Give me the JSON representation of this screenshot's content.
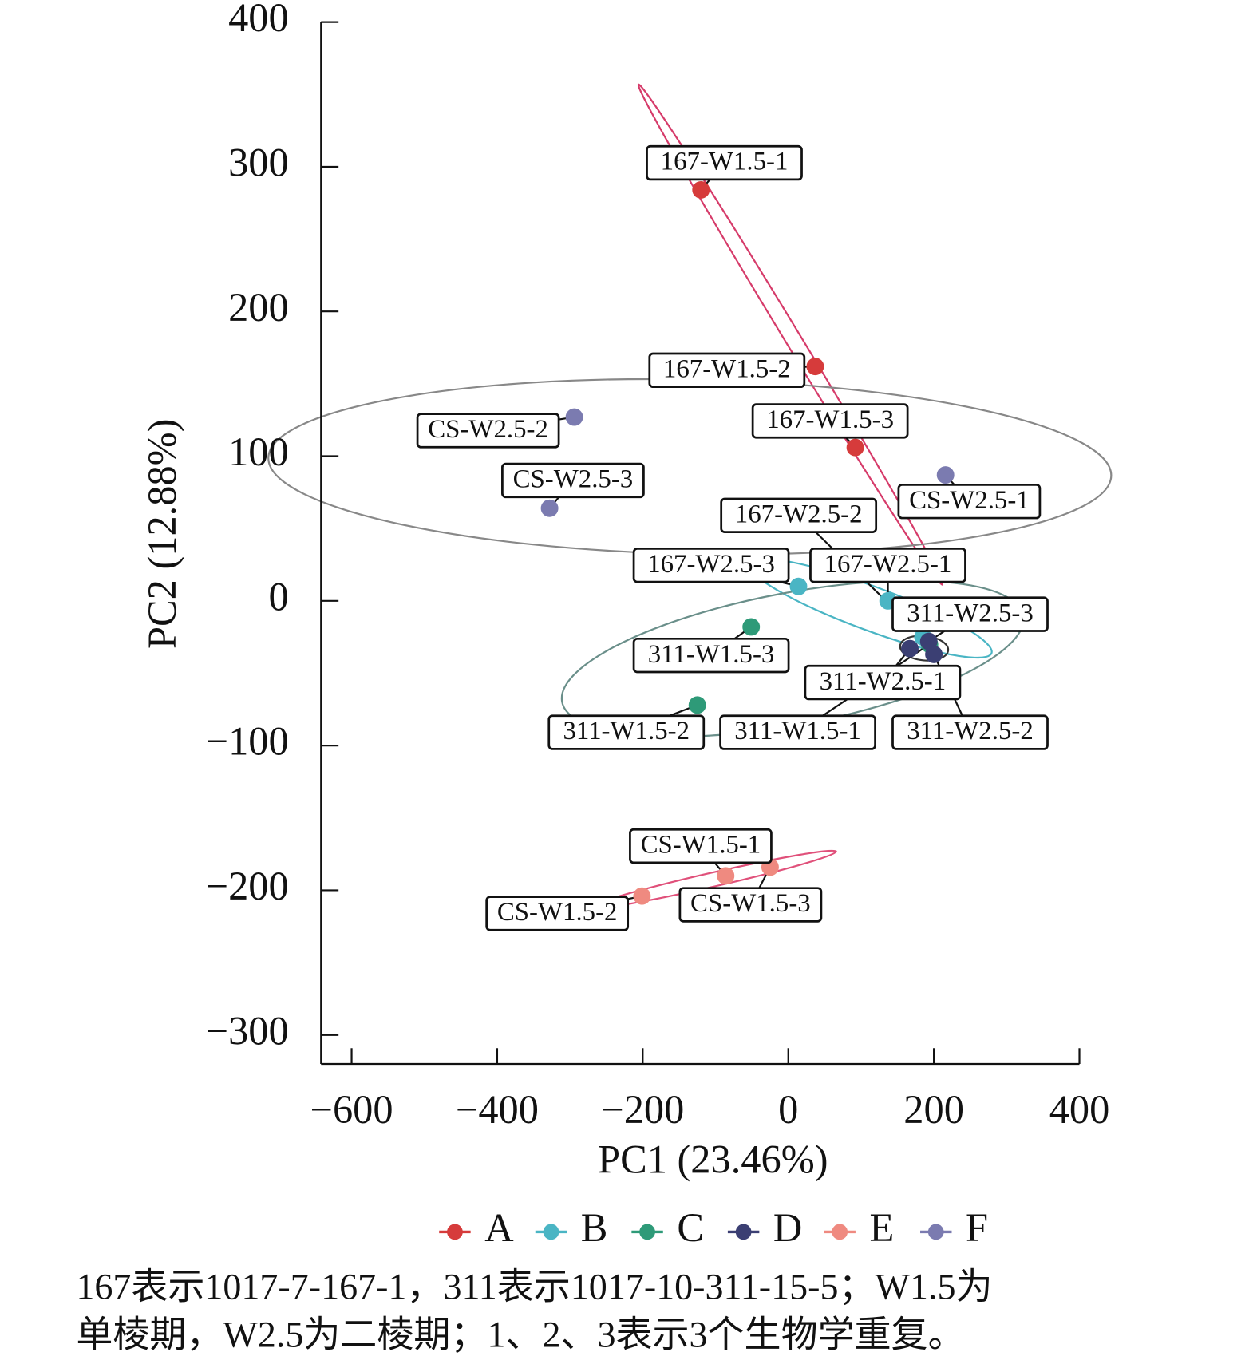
{
  "chart_data": {
    "type": "scatter",
    "x_label": "PC1 (23.46%)",
    "y_label": "PC2 (12.88%)",
    "xlim": [
      -642,
      400
    ],
    "ylim": [
      -320,
      400
    ],
    "xticks": [
      {
        "value": -600,
        "label": "−600"
      },
      {
        "value": -400,
        "label": "−400"
      },
      {
        "value": -200,
        "label": "−200"
      },
      0,
      200,
      400
    ],
    "yticks": [
      {
        "value": -300,
        "label": "−300"
      },
      {
        "value": -200,
        "label": "−200"
      },
      {
        "value": -100,
        "label": "−100"
      },
      0,
      100,
      200,
      300,
      400
    ],
    "series": [
      {
        "name": "A",
        "color": "#d63b3b",
        "labels": [
          "167-W1.5-1",
          "167-W1.5-2",
          "167-W1.5-3"
        ],
        "x": [
          -120,
          37,
          92
        ],
        "values": [
          284,
          162,
          106
        ]
      },
      {
        "name": "B",
        "color": "#4ab5c4",
        "labels": [
          "167-W2.5-1",
          "167-W2.5-2",
          "167-W2.5-3"
        ],
        "x": [
          137,
          185,
          14
        ],
        "values": [
          0,
          -25,
          10
        ]
      },
      {
        "name": "C",
        "color": "#2e9a78",
        "labels": [
          "311-W1.5-1",
          "311-W1.5-2",
          "311-W1.5-3"
        ],
        "x": [
          194,
          -125,
          -51
        ],
        "values": [
          -30,
          -72,
          -18
        ]
      },
      {
        "name": "D",
        "color": "#3b3f73",
        "labels": [
          "311-W2.5-1",
          "311-W2.5-2",
          "311-W2.5-3"
        ],
        "x": [
          167,
          200,
          193
        ],
        "values": [
          -33,
          -37,
          -28
        ]
      },
      {
        "name": "E",
        "color": "#ef8a80",
        "labels": [
          "CS-W1.5-1",
          "CS-W1.5-2",
          "CS-W1.5-3"
        ],
        "x": [
          -86,
          -201,
          -25
        ],
        "values": [
          -190,
          -204,
          -184
        ]
      },
      {
        "name": "F",
        "color": "#7b7bb0",
        "labels": [
          "CS-W2.5-1",
          "CS-W2.5-2",
          "CS-W2.5-3"
        ],
        "x": [
          216,
          -294,
          -328
        ],
        "values": [
          87,
          127,
          64
        ]
      }
    ],
    "note": [
      "167表示1017-7-167-1，311表示1017-10-311-15-5；W1.5为",
      "单棱期，W2.5为二棱期；1、2、3表示3个生物学重复。"
    ]
  }
}
